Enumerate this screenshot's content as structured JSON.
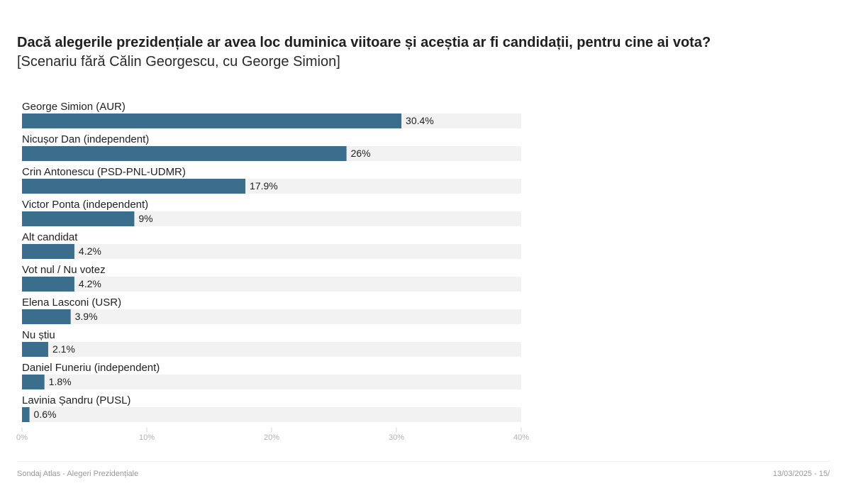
{
  "page": {
    "title": "Dacă alegerile prezidențiale ar avea loc duminica viitoare și aceștia ar fi candidații, pentru cine ai vota?",
    "subtitle": "[Scenariu fără Călin Georgescu, cu George Simion]",
    "footer_left": "Sondaj Atlas - Alegeri Prezidențiale",
    "footer_right": "13/03/2025 - 15/"
  },
  "colors": {
    "bar": "#3a6e8c",
    "track": "#f2f2f2"
  },
  "chart_data": {
    "type": "bar",
    "orientation": "horizontal",
    "title": "Dacă alegerile prezidențiale ar avea loc duminica viitoare și aceștia ar fi candidații, pentru cine ai vota?",
    "subtitle": "[Scenariu fără Călin Georgescu, cu George Simion]",
    "categories": [
      "George Simion (AUR)",
      "Nicușor Dan (independent)",
      "Crin Antonescu (PSD-PNL-UDMR)",
      "Victor Ponta (independent)",
      "Alt candidat",
      "Vot nul / Nu votez",
      "Elena Lasconi (USR)",
      "Nu știu",
      "Daniel Funeriu (independent)",
      "Lavinia Șandru (PUSL)"
    ],
    "values": [
      30.4,
      26,
      17.9,
      9,
      4.2,
      4.2,
      3.9,
      2.1,
      1.8,
      0.6
    ],
    "value_labels": [
      "30.4%",
      "26%",
      "17.9%",
      "9%",
      "4.2%",
      "4.2%",
      "3.9%",
      "2.1%",
      "1.8%",
      "0.6%"
    ],
    "xlim": [
      0,
      40
    ],
    "ticks": [
      0,
      10,
      20,
      30,
      40
    ],
    "tick_labels": [
      "0%",
      "10%",
      "20%",
      "30%",
      "40%"
    ],
    "grid": false
  }
}
